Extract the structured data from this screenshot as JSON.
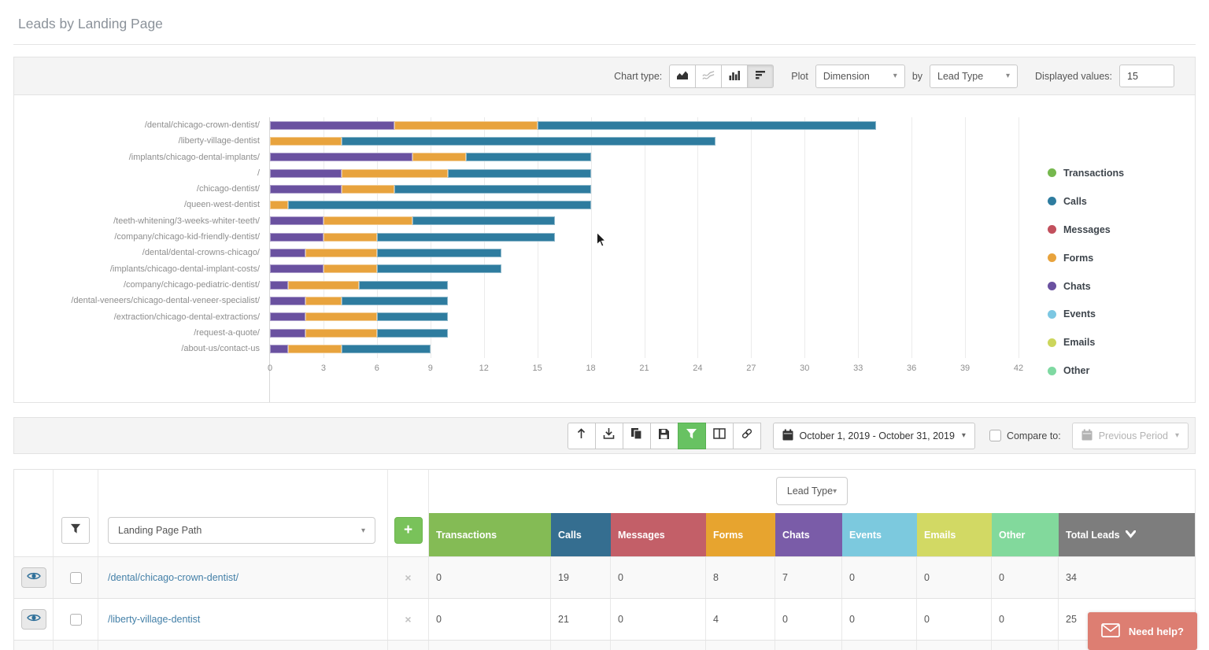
{
  "page": {
    "title": "Leads by Landing Page"
  },
  "chart_controls": {
    "chart_type_label": "Chart type:",
    "chart_types": [
      "area",
      "line",
      "column",
      "horizontal-bar"
    ],
    "selected_chart_type": "horizontal-bar",
    "plot_label": "Plot",
    "plot_dimension_value": "Dimension",
    "by_label": "by",
    "plot_by_value": "Lead Type",
    "displayed_values_label": "Displayed values:",
    "displayed_values": "15"
  },
  "chart_data": {
    "type": "bar",
    "orientation": "horizontal",
    "stacked": true,
    "categories": [
      "/dental/chicago-crown-dentist/",
      "/liberty-village-dentist",
      "/implants/chicago-dental-implants/",
      "/",
      "/chicago-dentist/",
      "/queen-west-dentist",
      "/teeth-whitening/3-weeks-whiter-teeth/",
      "/company/chicago-kid-friendly-dentist/",
      "/dental/dental-crowns-chicago/",
      "/implants/chicago-dental-implant-costs/",
      "/company/chicago-pediatric-dentist/",
      "/dental-veneers/chicago-dental-veneer-specialist/",
      "/extraction/chicago-dental-extractions/",
      "/request-a-quote/",
      "/about-us/contact-us"
    ],
    "series": [
      {
        "name": "Chats",
        "color": "#6a51a0",
        "values": [
          7,
          0,
          8,
          4,
          4,
          0,
          3,
          3,
          2,
          3,
          1,
          2,
          2,
          2,
          1
        ]
      },
      {
        "name": "Forms",
        "color": "#e8a33d",
        "values": [
          8,
          4,
          3,
          6,
          3,
          1,
          5,
          3,
          4,
          3,
          4,
          2,
          4,
          4,
          3
        ]
      },
      {
        "name": "Calls",
        "color": "#2e7c9f",
        "values": [
          19,
          21,
          7,
          8,
          11,
          17,
          8,
          10,
          7,
          7,
          5,
          6,
          4,
          4,
          5
        ]
      }
    ],
    "totals": [
      34,
      25,
      18,
      18,
      18,
      18,
      16,
      16,
      13,
      13,
      10,
      10,
      10,
      10,
      9
    ],
    "xlim": [
      0,
      42
    ],
    "xticks": [
      0,
      3,
      6,
      9,
      12,
      15,
      18,
      21,
      24,
      27,
      30,
      33,
      36,
      39,
      42
    ],
    "grid": true,
    "legend_position": "right",
    "legend": [
      {
        "label": "Transactions",
        "color": "#76b84e"
      },
      {
        "label": "Calls",
        "color": "#2e7c9f"
      },
      {
        "label": "Messages",
        "color": "#c2505d"
      },
      {
        "label": "Forms",
        "color": "#e8a33d"
      },
      {
        "label": "Chats",
        "color": "#6a51a0"
      },
      {
        "label": "Events",
        "color": "#7cc7e2"
      },
      {
        "label": "Emails",
        "color": "#ccd65c"
      },
      {
        "label": "Other",
        "color": "#7fd9a2"
      }
    ]
  },
  "toolbar": {
    "buttons": [
      "upload",
      "download",
      "copy",
      "save",
      "filter",
      "columns",
      "link"
    ],
    "active_button": "filter",
    "active_color": "#68c262",
    "date_range": "October 1, 2019 - October 31, 2019",
    "compare_label": "Compare to:",
    "compare_checked": false,
    "previous_period_label": "Previous Period"
  },
  "table": {
    "lead_type_dropdown": "Lead Type",
    "landing_page_dropdown": "Landing Page Path",
    "add_button_label": "+",
    "columns": [
      {
        "label": "Transactions",
        "color": "#84bb55"
      },
      {
        "label": "Calls",
        "color": "#356e90"
      },
      {
        "label": "Messages",
        "color": "#c35f68"
      },
      {
        "label": "Forms",
        "color": "#e7a42f"
      },
      {
        "label": "Chats",
        "color": "#7a5ca8"
      },
      {
        "label": "Events",
        "color": "#7cc9de"
      },
      {
        "label": "Emails",
        "color": "#d2d964"
      },
      {
        "label": "Other",
        "color": "#82d99c"
      },
      {
        "label": "Total Leads",
        "color": "#7d7d7d",
        "sort": "desc"
      }
    ],
    "rows": [
      {
        "path": "/dental/chicago-crown-dentist/",
        "values": [
          "0",
          "19",
          "0",
          "8",
          "7",
          "0",
          "0",
          "0",
          "34"
        ]
      },
      {
        "path": "/liberty-village-dentist",
        "values": [
          "0",
          "21",
          "0",
          "4",
          "0",
          "0",
          "0",
          "0",
          "25"
        ]
      }
    ],
    "extra_partial_row": true
  },
  "help_button": {
    "label": "Need help?",
    "color": "#dd7e72"
  }
}
